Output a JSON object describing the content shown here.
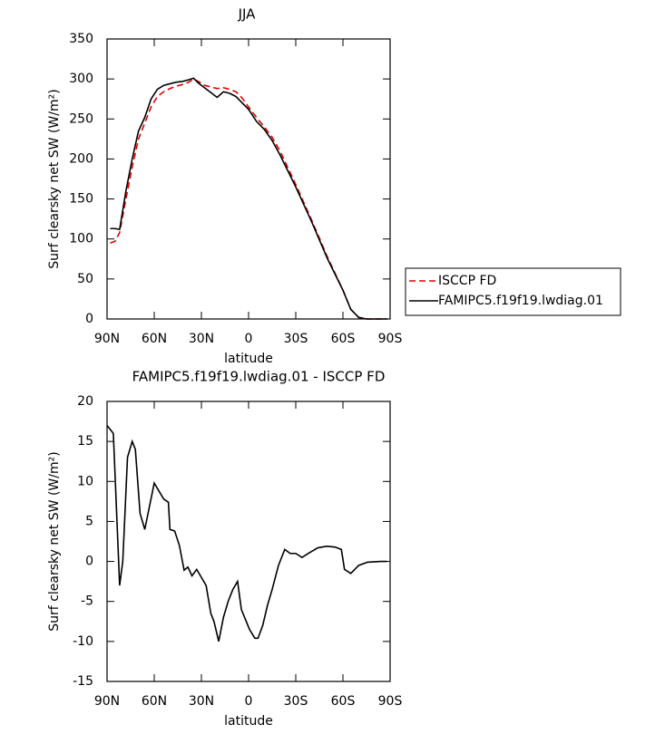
{
  "chart_data": [
    {
      "type": "line",
      "title": "JJA",
      "xlabel": "latitude",
      "ylabel": "Surf clearsky net SW (W/m²)",
      "x": [
        88,
        85,
        82,
        78,
        74,
        70,
        66,
        62,
        58,
        54,
        50,
        46,
        42,
        38,
        35,
        32,
        28,
        24,
        20,
        16,
        12,
        8,
        4,
        0,
        -5,
        -10,
        -15,
        -20,
        -30,
        -40,
        -50,
        -60,
        -65,
        -70,
        -75,
        -80,
        -88
      ],
      "series": [
        {
          "name": "ISCCP FD",
          "color": "#e00000",
          "dashed": true,
          "values": [
            95,
            97,
            108,
            150,
            190,
            225,
            245,
            265,
            278,
            284,
            288,
            291,
            293,
            296,
            300,
            297,
            292,
            290,
            288,
            289,
            287,
            284,
            276,
            265,
            252,
            240,
            227,
            210,
            168,
            124,
            78,
            36,
            12,
            2,
            0,
            0,
            0
          ]
        },
        {
          "name": "FAMIPC5.f19f19.lwdiag.01",
          "color": "#000000",
          "dashed": false,
          "values": [
            113,
            113,
            112,
            160,
            200,
            235,
            252,
            275,
            287,
            292,
            294,
            296,
            297,
            299,
            301,
            295,
            289,
            283,
            277,
            284,
            282,
            278,
            270,
            262,
            247,
            237,
            223,
            205,
            165,
            122,
            76,
            36,
            12,
            2,
            0,
            0,
            0
          ]
        }
      ],
      "xlim": [
        90,
        -90
      ],
      "xticks": [
        {
          "value": 90,
          "label": "90N"
        },
        {
          "value": 60,
          "label": "60N"
        },
        {
          "value": 30,
          "label": "30N"
        },
        0,
        {
          "value": -30,
          "label": "30S"
        },
        {
          "value": -60,
          "label": "60S"
        },
        {
          "value": -90,
          "label": "90S"
        }
      ],
      "ylim": [
        0,
        350
      ],
      "yticks": [
        0,
        50,
        100,
        150,
        200,
        250,
        300,
        350
      ],
      "legend": "right"
    },
    {
      "type": "line",
      "title": "FAMIPC5.f19f19.lwdiag.01 - ISCCP FD",
      "xlabel": "latitude",
      "ylabel": "Surf clearsky net SW (W/m²)",
      "x": [
        90,
        86,
        82,
        80,
        77,
        74,
        72,
        69,
        66,
        60,
        54,
        51,
        50,
        47,
        44,
        41,
        38.6,
        36,
        33,
        30,
        27,
        24,
        22,
        19,
        16,
        13,
        10,
        7,
        4.6,
        -0.6,
        -4,
        -6,
        -9,
        -12,
        -15,
        -19,
        -23,
        -26.5,
        -30,
        -34,
        -38,
        -44,
        -49.6,
        -55,
        -59,
        -61,
        -65,
        -70,
        -75.5,
        -84,
        -88
      ],
      "series": [
        {
          "color": "#000000",
          "dashed": false,
          "values": [
            17,
            16,
            -3,
            0,
            13,
            15,
            14,
            6,
            4,
            9.8,
            7.8,
            7.4,
            4,
            3.8,
            2,
            -1.1,
            -0.7,
            -1.8,
            -1,
            -2,
            -3,
            -6.5,
            -7.5,
            -10,
            -7,
            -5,
            -3.5,
            -2.5,
            -6,
            -8.5,
            -9.6,
            -9.6,
            -8,
            -5.5,
            -3.5,
            -0.5,
            1.5,
            1,
            1,
            0.5,
            1,
            1.7,
            1.9,
            1.8,
            1.5,
            -1,
            -1.5,
            -0.5,
            -0.1,
            0,
            0
          ]
        }
      ],
      "xlim": [
        90,
        -90
      ],
      "xticks": [
        {
          "value": 90,
          "label": "90N"
        },
        {
          "value": 60,
          "label": "60N"
        },
        {
          "value": 30,
          "label": "30N"
        },
        0,
        {
          "value": -30,
          "label": "30S"
        },
        {
          "value": -60,
          "label": "60S"
        },
        {
          "value": -90,
          "label": "90S"
        }
      ],
      "ylim": [
        -15,
        20
      ],
      "yticks": [
        -15,
        -10,
        -5,
        0,
        5,
        10,
        15,
        20
      ]
    }
  ]
}
